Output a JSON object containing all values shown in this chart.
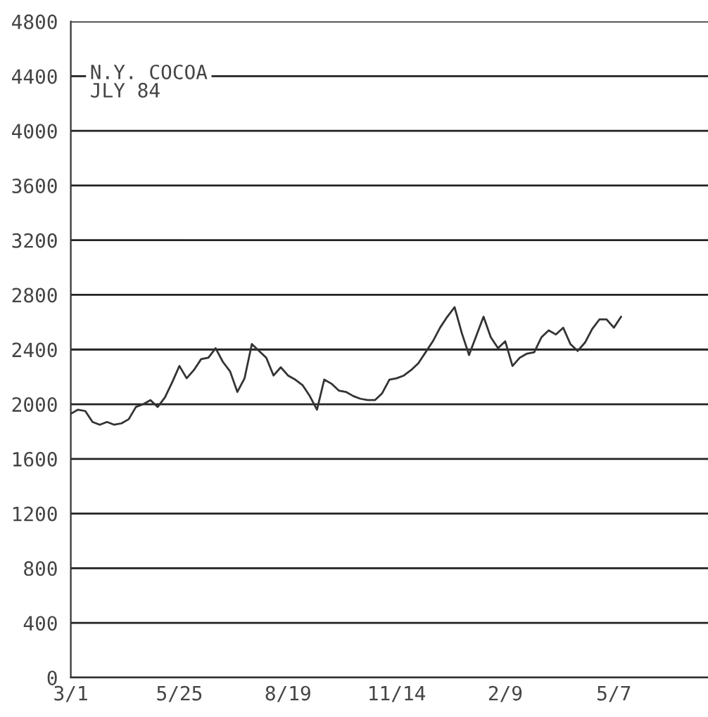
{
  "chart_data": {
    "type": "line",
    "title": "N.Y. COCOA\nJLY 84",
    "categories": [
      "3/1",
      null,
      null,
      null,
      null,
      null,
      null,
      null,
      null,
      null,
      null,
      null,
      null,
      null,
      null,
      "5/25",
      null,
      null,
      null,
      null,
      null,
      null,
      null,
      null,
      null,
      null,
      null,
      null,
      null,
      null,
      "8/19",
      null,
      null,
      null,
      null,
      null,
      null,
      null,
      null,
      null,
      null,
      null,
      null,
      null,
      null,
      "11/14",
      null,
      null,
      null,
      null,
      null,
      null,
      null,
      null,
      null,
      null,
      null,
      null,
      null,
      null,
      "2/9",
      null,
      null,
      null,
      null,
      null,
      null,
      null,
      null,
      null,
      null,
      null,
      null,
      null,
      null,
      "5/7",
      null,
      null,
      null,
      null,
      null,
      null,
      null,
      null,
      null,
      null,
      null,
      null,
      null
    ],
    "series": [
      {
        "color": "#333333",
        "values": [
          1930,
          1960,
          1950,
          1870,
          1850,
          1870,
          1850,
          1860,
          1890,
          1980,
          2000,
          2030,
          1980,
          2050,
          2160,
          2280,
          2190,
          2250,
          2330,
          2340,
          2410,
          2310,
          2240,
          2090,
          2190,
          2440,
          2390,
          2340,
          2210,
          2270,
          2210,
          2180,
          2140,
          2060,
          1960,
          2180,
          2150,
          2100,
          2090,
          2060,
          2040,
          2030,
          2030,
          2080,
          2180,
          2190,
          2210,
          2250,
          2300,
          2380,
          2460,
          2560,
          2640,
          2710,
          2520,
          2360,
          2500,
          2640,
          2490,
          2410,
          2460,
          2280,
          2340,
          2370,
          2380,
          2490,
          2540,
          2510,
          2560,
          2440,
          2390,
          2450,
          2550,
          2620,
          2620,
          2560,
          2640,
          null,
          null,
          null,
          null,
          null,
          null,
          null,
          null,
          null,
          null,
          null,
          null
        ]
      }
    ],
    "ylim": [
      0,
      4800
    ],
    "yticks": [
      0,
      400,
      800,
      1200,
      1600,
      2000,
      2400,
      2800,
      3200,
      3600,
      4000,
      4400,
      4800
    ],
    "grid": "y",
    "marker": "none",
    "line_style": "solid",
    "legend": false
  }
}
